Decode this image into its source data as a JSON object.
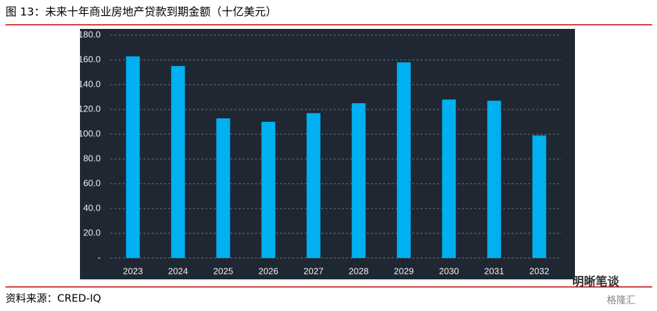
{
  "chart_data": {
    "type": "bar",
    "title": "图 13：未来十年商业房地产贷款到期金额（十亿美元）",
    "categories": [
      "2023",
      "2024",
      "2025",
      "2026",
      "2027",
      "2028",
      "2029",
      "2030",
      "2031",
      "2032"
    ],
    "values": [
      162.8,
      155,
      112.8,
      110,
      117,
      125,
      158,
      128,
      127,
      99
    ],
    "color": "#00b0f0",
    "ylim": [
      0,
      180
    ],
    "yticks": [
      {
        "value": 0,
        "label": "-"
      },
      {
        "value": 20,
        "label": "20.0"
      },
      {
        "value": 40,
        "label": "40.0"
      },
      {
        "value": 60,
        "label": "60.0"
      },
      {
        "value": 80,
        "label": "80.0"
      },
      {
        "value": 100,
        "label": "100.0"
      },
      {
        "value": 120,
        "label": "120.0"
      },
      {
        "value": 140,
        "label": "140.0"
      },
      {
        "value": 160,
        "label": "160.0"
      },
      {
        "value": 180,
        "label": "180.0"
      }
    ],
    "grid": true
  },
  "source": "资料来源：CRED-IQ",
  "watermark": [
    "明晰笔谈",
    "格隆汇"
  ]
}
